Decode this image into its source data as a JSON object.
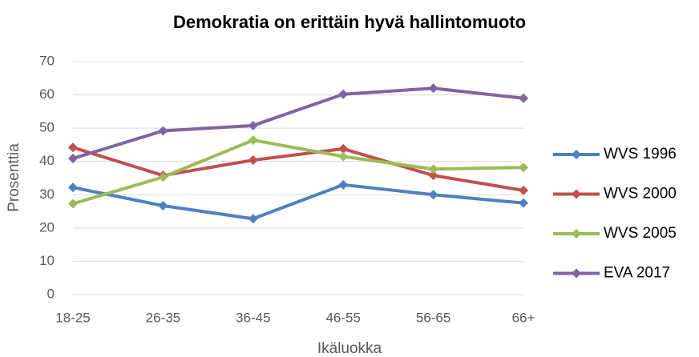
{
  "chart_data": {
    "type": "line",
    "title": "Demokratia on erittäin hyvä hallintomuoto",
    "x_label": "Ikäluokka",
    "y_label": "Prosenttia",
    "categories": [
      "18-25",
      "26-35",
      "36-45",
      "46-55",
      "56-65",
      "66+"
    ],
    "series": [
      {
        "name": "WVS 1996",
        "color": "#4f81bd",
        "values": [
          32.2,
          26.7,
          22.8,
          33,
          30,
          27.5
        ]
      },
      {
        "name": "WVS 2000",
        "color": "#c0504d",
        "values": [
          44.2,
          35.8,
          40.4,
          43.8,
          35.8,
          31.3
        ]
      },
      {
        "name": "WVS 2005",
        "color": "#9bbb59",
        "values": [
          27.3,
          35.3,
          46.4,
          41.5,
          37.7,
          38.2
        ]
      },
      {
        "name": "EVA 2017",
        "color": "#8064a2",
        "values": [
          40.9,
          49.2,
          50.8,
          60.2,
          62,
          59
        ]
      }
    ],
    "ylim": [
      0,
      70
    ],
    "yticks": [
      0,
      10,
      20,
      30,
      40,
      50,
      60,
      70
    ],
    "grid": true,
    "legend": "right"
  }
}
